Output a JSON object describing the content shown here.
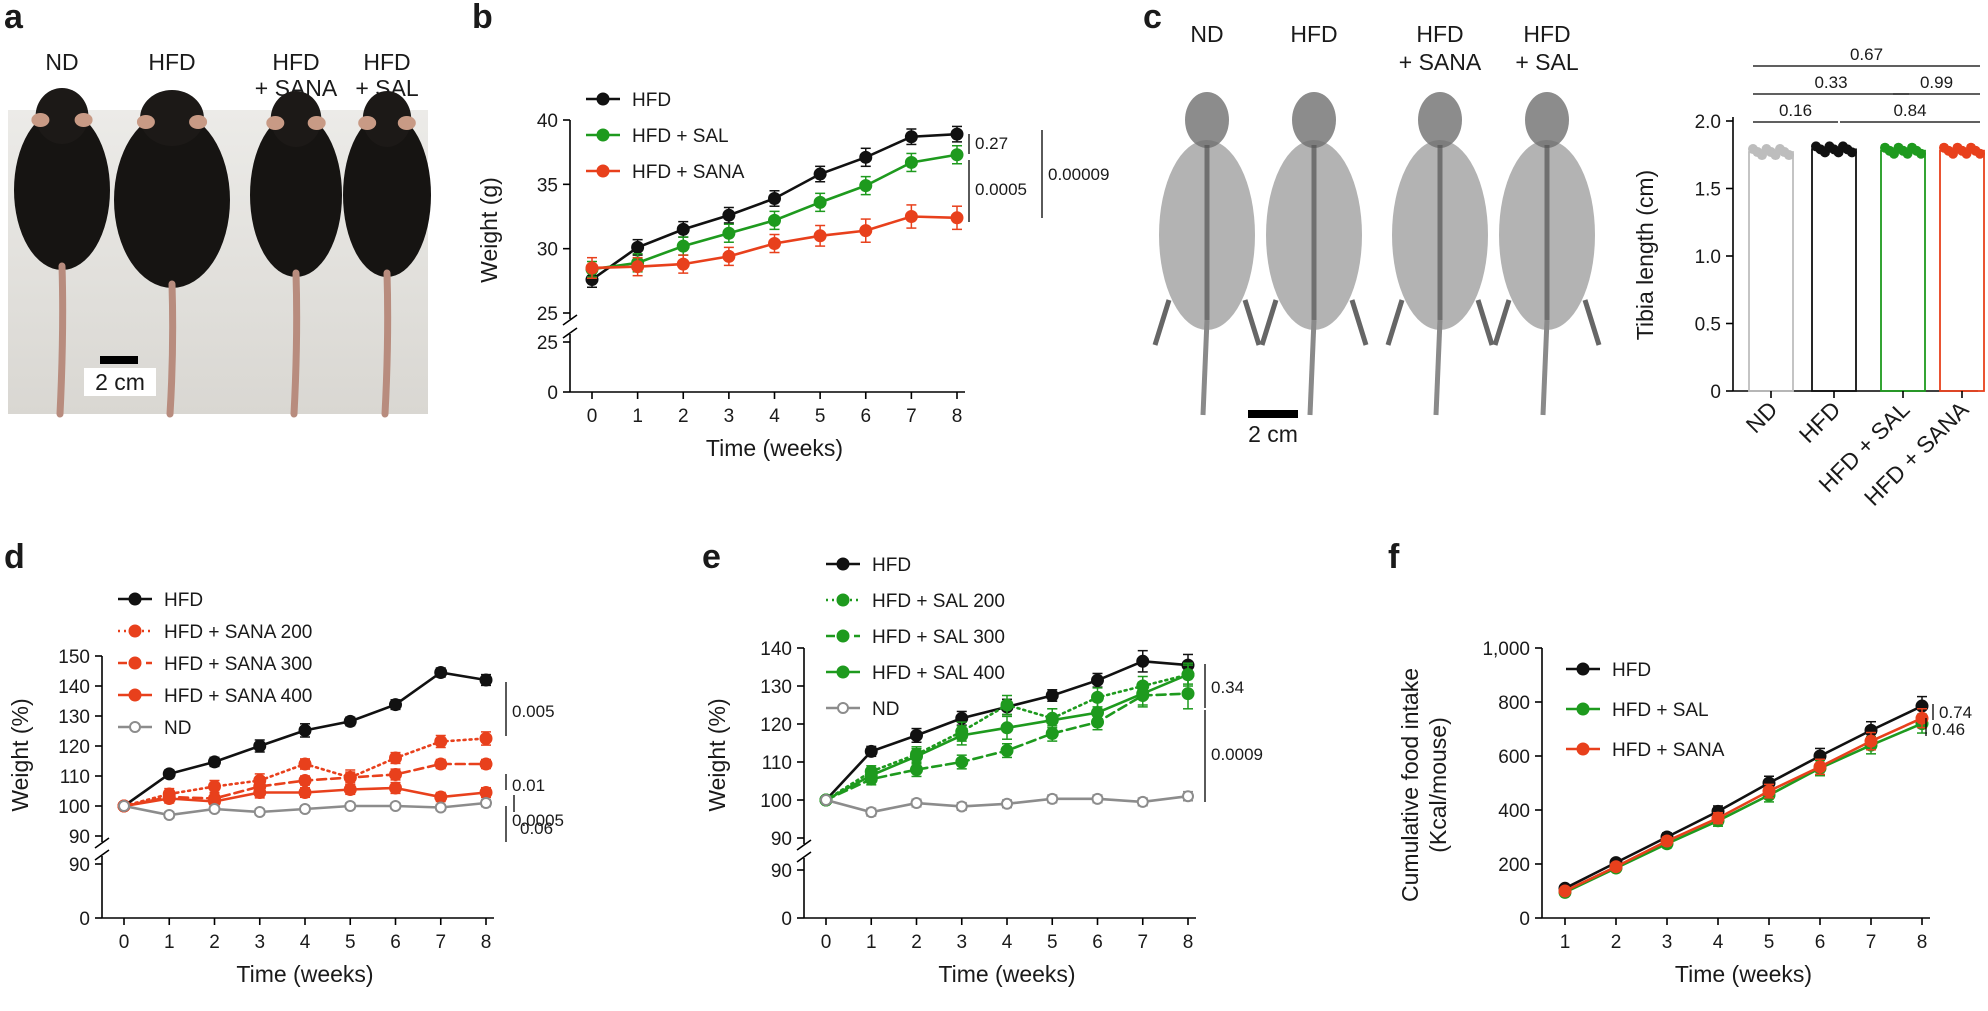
{
  "panel_letters": [
    "a",
    "b",
    "c",
    "d",
    "e",
    "f"
  ],
  "photo_a": {
    "labels": [
      "ND",
      "HFD",
      "HFD\n+ SANA",
      "HFD\n+ SAL"
    ],
    "scale": "2 cm"
  },
  "photo_c": {
    "labels": [
      "ND",
      "HFD",
      "HFD\n+ SANA",
      "HFD\n+ SAL"
    ],
    "scale": "2 cm"
  },
  "colors": {
    "HFD": "#111111",
    "SAL": "#1e9a1e",
    "SANA": "#e8401c",
    "ND": "#8c8c8c"
  },
  "chart_data": [
    {
      "id": "b",
      "type": "line",
      "xlabel": "Time (weeks)",
      "ylabel": "Weight (g)",
      "x": [
        0,
        1,
        2,
        3,
        4,
        5,
        6,
        7,
        8
      ],
      "ylim": [
        25,
        40
      ],
      "yticks": [
        25,
        30,
        35,
        40
      ],
      "broken_axis": {
        "lower_ticks": [
          0,
          25
        ]
      },
      "series": [
        {
          "name": "HFD",
          "color": "#111111",
          "dash": "solid",
          "values": [
            27.6,
            30.1,
            31.5,
            32.6,
            33.9,
            35.8,
            37.1,
            38.7,
            38.9
          ],
          "err": [
            0.6,
            0.6,
            0.6,
            0.6,
            0.6,
            0.6,
            0.7,
            0.6,
            0.6
          ]
        },
        {
          "name": "HFD + SAL",
          "color": "#1e9a1e",
          "dash": "solid",
          "values": [
            28.4,
            28.9,
            30.2,
            31.2,
            32.2,
            33.6,
            34.9,
            36.7,
            37.3
          ],
          "err": [
            0.6,
            0.7,
            0.7,
            0.7,
            0.7,
            0.7,
            0.7,
            0.7,
            0.7
          ]
        },
        {
          "name": "HFD + SANA",
          "color": "#e8401c",
          "dash": "solid",
          "values": [
            28.5,
            28.6,
            28.8,
            29.4,
            30.4,
            31.0,
            31.4,
            32.5,
            32.4
          ],
          "err": [
            0.8,
            0.7,
            0.7,
            0.7,
            0.7,
            0.8,
            0.9,
            0.9,
            0.9
          ]
        }
      ],
      "pvalues": [
        "0.27",
        "0.0005",
        "0.00009"
      ]
    },
    {
      "id": "c",
      "type": "bar",
      "categories": [
        "ND",
        "HFD",
        "HFD + SAL",
        "HFD + SANA"
      ],
      "values": [
        1.77,
        1.79,
        1.78,
        1.78
      ],
      "colors": [
        "#bdbdbd",
        "#111111",
        "#1e9a1e",
        "#e8401c"
      ],
      "ylabel": "Tibia length (cm)",
      "ylim": [
        0,
        2.0
      ],
      "yticks": [
        "0",
        "0.5",
        "1.0",
        "1.5",
        "2.0"
      ],
      "comparisons": [
        {
          "from": 0,
          "to": 3,
          "p": "0.67"
        },
        {
          "from": 0,
          "to": 2,
          "p": "0.33"
        },
        {
          "from": 2,
          "to": 3,
          "p": "0.99"
        },
        {
          "from": 0,
          "to": 1,
          "p": "0.16"
        },
        {
          "from": 1,
          "to": 3,
          "p": "0.84"
        }
      ]
    },
    {
      "id": "d",
      "type": "line",
      "xlabel": "Time (weeks)",
      "ylabel": "Weight (%)",
      "x": [
        0,
        1,
        2,
        3,
        4,
        5,
        6,
        7,
        8
      ],
      "ylim": [
        90,
        150
      ],
      "yticks": [
        90,
        100,
        110,
        120,
        130,
        140,
        150
      ],
      "broken_axis": {
        "lower_ticks": [
          0,
          90
        ]
      },
      "series": [
        {
          "name": "HFD",
          "color": "#111111",
          "dash": "solid",
          "open": false,
          "values": [
            100,
            110.7,
            114.7,
            120.0,
            125.2,
            128.2,
            133.8,
            144.5,
            142.0
          ],
          "err": [
            0.6,
            1.3,
            1.5,
            2.0,
            2.2,
            1.4,
            1.6,
            1.5,
            1.8
          ]
        },
        {
          "name": "HFD + SANA 200",
          "color": "#e8401c",
          "dash": "dot",
          "open": false,
          "values": [
            100,
            104.0,
            106.5,
            108.5,
            114.0,
            109.5,
            116.0,
            121.5,
            122.5
          ],
          "err": [
            0.6,
            1.8,
            2.0,
            2.2,
            1.7,
            2.5,
            1.8,
            2.0,
            2.2
          ]
        },
        {
          "name": "HFD + SANA 300",
          "color": "#e8401c",
          "dash": "dash",
          "open": false,
          "values": [
            100,
            103.0,
            102.5,
            106.5,
            108.5,
            109.5,
            110.5,
            114.0,
            114.0
          ],
          "err": [
            0.6,
            1.5,
            1.8,
            1.8,
            1.5,
            1.8,
            1.8,
            1.5,
            1.5
          ]
        },
        {
          "name": "HFD + SANA 400",
          "color": "#e8401c",
          "dash": "solid",
          "open": false,
          "values": [
            100,
            102.5,
            101.5,
            104.5,
            104.5,
            105.5,
            106.0,
            103.0,
            104.5
          ],
          "err": [
            0.6,
            1.5,
            1.8,
            1.8,
            1.6,
            1.6,
            1.8,
            1.5,
            1.6
          ]
        },
        {
          "name": "ND",
          "color": "#8c8c8c",
          "dash": "solid",
          "open": true,
          "values": [
            100,
            97.0,
            99.0,
            98.0,
            99.0,
            100.0,
            100.0,
            99.5,
            101.0
          ],
          "err": [
            0.6,
            1.0,
            1.0,
            1.0,
            1.0,
            1.0,
            1.0,
            1.0,
            1.2
          ]
        }
      ],
      "pvalues": [
        "0.005",
        "0.01",
        "0.0005",
        "0.06"
      ]
    },
    {
      "id": "e",
      "type": "line",
      "xlabel": "Time (weeks)",
      "ylabel": "Weight (%)",
      "x": [
        0,
        1,
        2,
        3,
        4,
        5,
        6,
        7,
        8
      ],
      "ylim": [
        90,
        140
      ],
      "yticks": [
        90,
        100,
        110,
        120,
        130,
        140
      ],
      "broken_axis": {
        "lower_ticks": [
          0,
          90
        ]
      },
      "series": [
        {
          "name": "HFD",
          "color": "#111111",
          "dash": "solid",
          "open": false,
          "values": [
            100,
            112.8,
            117.0,
            121.5,
            124.5,
            127.5,
            131.5,
            136.5,
            135.5
          ],
          "err": [
            0.6,
            1.3,
            1.8,
            1.8,
            2.0,
            1.5,
            1.8,
            2.8,
            2.8
          ]
        },
        {
          "name": "HFD + SAL 200",
          "color": "#1e9a1e",
          "dash": "dot",
          "open": false,
          "values": [
            100,
            107.5,
            112.0,
            118.0,
            125.0,
            121.5,
            127.0,
            130.0,
            133.0
          ],
          "err": [
            0.6,
            1.5,
            2.0,
            2.5,
            2.5,
            2.5,
            2.5,
            2.5,
            2.5
          ]
        },
        {
          "name": "HFD + SAL 300",
          "color": "#1e9a1e",
          "dash": "dash",
          "open": false,
          "values": [
            100,
            105.5,
            108.0,
            110.0,
            113.0,
            117.5,
            120.5,
            127.5,
            128.0
          ],
          "err": [
            0.6,
            1.5,
            1.8,
            1.8,
            1.8,
            2.0,
            2.0,
            3.0,
            4.0
          ]
        },
        {
          "name": "HFD + SAL 400",
          "color": "#1e9a1e",
          "dash": "solid",
          "open": false,
          "values": [
            100,
            106.5,
            111.5,
            117.0,
            119.0,
            121.0,
            123.0,
            128.0,
            133.0
          ],
          "err": [
            0.6,
            1.5,
            2.0,
            2.5,
            3.0,
            3.0,
            3.0,
            3.0,
            3.0
          ]
        },
        {
          "name": "ND",
          "color": "#8c8c8c",
          "dash": "solid",
          "open": true,
          "values": [
            100,
            96.8,
            99.2,
            98.3,
            99.0,
            100.3,
            100.3,
            99.5,
            101.0
          ],
          "err": [
            0.6,
            1.0,
            1.0,
            1.0,
            1.0,
            1.0,
            1.0,
            1.0,
            1.2
          ]
        }
      ],
      "pvalues": [
        "0.34",
        "0.0009"
      ]
    },
    {
      "id": "f",
      "type": "line",
      "xlabel": "Time (weeks)",
      "ylabel": "Cumulative food intake\n(Kcal/mouse)",
      "x": [
        1,
        2,
        3,
        4,
        5,
        6,
        7,
        8
      ],
      "ylim": [
        0,
        1000
      ],
      "yticks": [
        "0",
        "200",
        "400",
        "600",
        "800",
        "1,000"
      ],
      "series": [
        {
          "name": "HFD",
          "color": "#111111",
          "dash": "solid",
          "values": [
            110,
            205,
            300,
            395,
            500,
            600,
            695,
            785
          ],
          "err": [
            8,
            12,
            15,
            20,
            25,
            28,
            32,
            35
          ]
        },
        {
          "name": "HFD + SAL",
          "color": "#1e9a1e",
          "dash": "solid",
          "values": [
            95,
            185,
            275,
            360,
            455,
            555,
            640,
            720
          ],
          "err": [
            8,
            12,
            15,
            20,
            25,
            28,
            32,
            35
          ]
        },
        {
          "name": "HFD + SANA",
          "color": "#e8401c",
          "dash": "solid",
          "values": [
            100,
            190,
            285,
            370,
            470,
            560,
            655,
            740
          ],
          "err": [
            8,
            12,
            15,
            20,
            25,
            28,
            32,
            35
          ]
        }
      ],
      "pvalues": [
        "0.74",
        "0.46"
      ]
    }
  ]
}
